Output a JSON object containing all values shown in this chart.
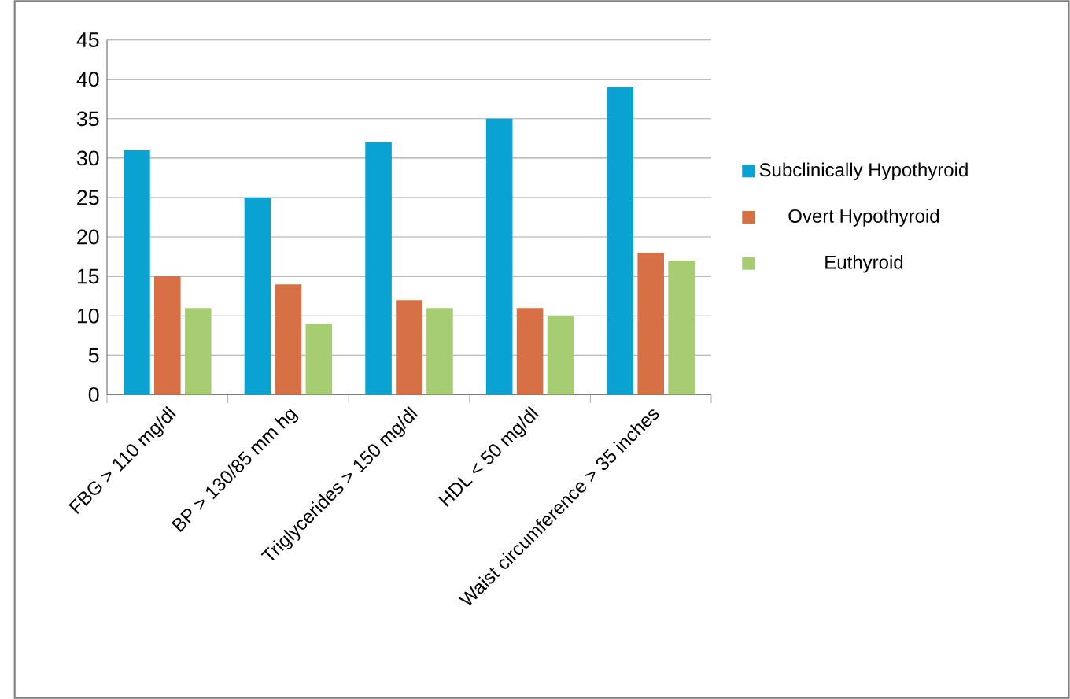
{
  "chart_data": {
    "type": "bar",
    "categories": [
      "FBG > 110 mg/dl",
      "BP > 130/85 mm hg",
      "Triglycerides > 150 mg/dl",
      "HDL < 50 mg/dl",
      "Waist circumference > 35 inches"
    ],
    "series": [
      {
        "name": "Subclinically Hypothyroid",
        "color": "#0aa3d1",
        "values": [
          31,
          25,
          32,
          35,
          39
        ]
      },
      {
        "name": "Overt Hypothyroid",
        "color": "#d77045",
        "values": [
          15,
          14,
          12,
          11,
          18
        ]
      },
      {
        "name": "Euthyroid",
        "color": "#a6cd72",
        "values": [
          11,
          9,
          11,
          10,
          17
        ]
      }
    ],
    "ylim": [
      0,
      45
    ],
    "yticks": [
      0,
      5,
      10,
      15,
      20,
      25,
      30,
      35,
      40,
      45
    ],
    "grid": "y",
    "legend": "right"
  }
}
